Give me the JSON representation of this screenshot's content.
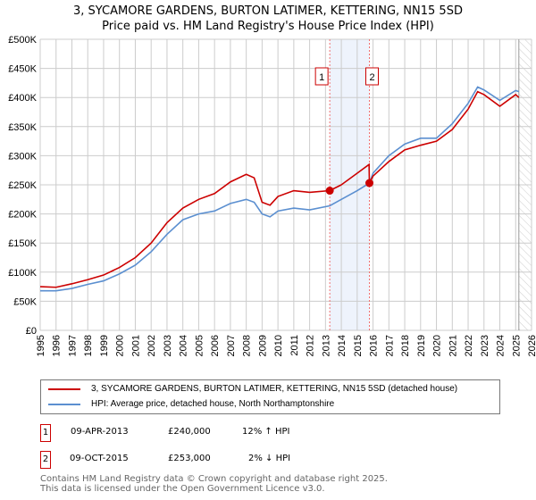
{
  "title": "3, SYCAMORE GARDENS, BURTON LATIMER, KETTERING, NN15 5SD",
  "subtitle": "Price paid vs. HM Land Registry's House Price Index (HPI)",
  "chart_data": {
    "type": "line",
    "xlim": [
      1995,
      2026
    ],
    "ylim": [
      0,
      500000
    ],
    "x_ticks": [
      "1995",
      "1996",
      "1997",
      "1998",
      "1999",
      "2000",
      "2001",
      "2002",
      "2003",
      "2004",
      "2005",
      "2006",
      "2007",
      "2008",
      "2009",
      "2010",
      "2011",
      "2012",
      "2013",
      "2014",
      "2015",
      "2016",
      "2017",
      "2018",
      "2019",
      "2020",
      "2021",
      "2022",
      "2023",
      "2024",
      "2025",
      "2026"
    ],
    "y_ticks": [
      "£0",
      "£50K",
      "£100K",
      "£150K",
      "£200K",
      "£250K",
      "£300K",
      "£350K",
      "£400K",
      "£450K",
      "£500K"
    ],
    "grid": true,
    "series": [
      {
        "name": "3, SYCAMORE GARDENS, BURTON LATIMER, KETTERING, NN15 5SD (detached house)",
        "color": "#cc0000",
        "x": [
          1995,
          1996,
          1997,
          1998,
          1999,
          2000,
          2001,
          2002,
          2003,
          2004,
          2005,
          2006,
          2007,
          2008,
          2008.5,
          2009,
          2009.5,
          2010,
          2011,
          2012,
          2013.27,
          2014,
          2015,
          2015.75,
          2015.77,
          2016,
          2017,
          2018,
          2019,
          2020,
          2021,
          2022,
          2022.6,
          2023,
          2024,
          2025,
          2025.2
        ],
        "y": [
          75000,
          74000,
          80000,
          87000,
          95000,
          108000,
          125000,
          150000,
          185000,
          210000,
          225000,
          235000,
          255000,
          268000,
          262000,
          220000,
          215000,
          230000,
          240000,
          237000,
          240000,
          250000,
          270000,
          285000,
          253000,
          265000,
          290000,
          310000,
          318000,
          325000,
          345000,
          380000,
          410000,
          405000,
          385000,
          405000,
          400000
        ]
      },
      {
        "name": "HPI: Average price, detached house, North Northamptonshire",
        "color": "#5b8fd0",
        "x": [
          1995,
          1996,
          1997,
          1998,
          1999,
          2000,
          2001,
          2002,
          2003,
          2004,
          2005,
          2006,
          2007,
          2008,
          2008.5,
          2009,
          2009.5,
          2010,
          2011,
          2012,
          2013.27,
          2014,
          2015,
          2015.77,
          2016,
          2017,
          2018,
          2019,
          2020,
          2021,
          2022,
          2022.6,
          2023,
          2024,
          2025,
          2025.2
        ],
        "y": [
          68000,
          68000,
          72000,
          79000,
          85000,
          97000,
          112000,
          135000,
          165000,
          190000,
          200000,
          205000,
          218000,
          225000,
          220000,
          200000,
          195000,
          205000,
          210000,
          207000,
          214000,
          225000,
          240000,
          253000,
          270000,
          300000,
          320000,
          330000,
          330000,
          355000,
          390000,
          418000,
          413000,
          395000,
          412000,
          410000
        ]
      }
    ],
    "annotations": [
      {
        "label": "1",
        "x": 2013.27,
        "y": 240000
      },
      {
        "label": "2",
        "x": 2015.77,
        "y": 253000
      }
    ],
    "shaded_range": [
      2013.27,
      2015.77
    ],
    "forecast_hatch_from": 2025.2
  },
  "transactions": [
    {
      "num": "1",
      "date": "09-APR-2013",
      "price": "£240,000",
      "hpi": "12% ↑ HPI"
    },
    {
      "num": "2",
      "date": "09-OCT-2015",
      "price": "£253,000",
      "hpi": "2% ↓ HPI"
    }
  ],
  "footer": [
    "Contains HM Land Registry data © Crown copyright and database right 2025.",
    "This data is licensed under the Open Government Licence v3.0."
  ]
}
